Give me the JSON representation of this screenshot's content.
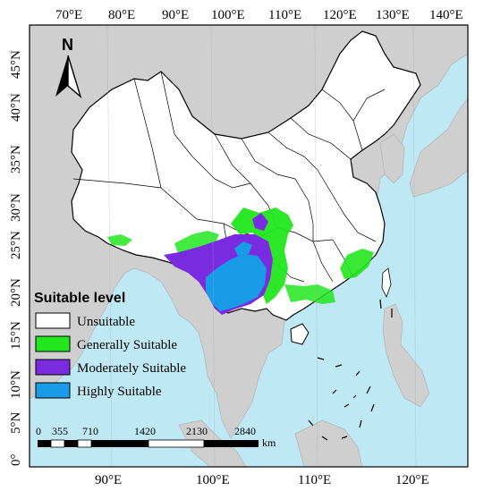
{
  "map": {
    "top_lon_labels": [
      "70°E",
      "80°E",
      "90°E",
      "100°E",
      "110°E",
      "120°E",
      "130°E",
      "140°E"
    ],
    "bottom_lon_labels": [
      "90°E",
      "100°E",
      "110°E",
      "120°E"
    ],
    "lat_labels": [
      "45°N",
      "40°N",
      "35°N",
      "30°N",
      "25°N",
      "20°N",
      "15°N",
      "10°N",
      "5°N",
      "0°"
    ],
    "north_label": "N"
  },
  "legend": {
    "title": "Suitable level",
    "items": [
      {
        "label": "Unsuitable",
        "color": "#ffffff"
      },
      {
        "label": "Generally Suitable",
        "color": "#22e61e"
      },
      {
        "label": "Moderately Suitable",
        "color": "#7a2be0"
      },
      {
        "label": "Highly Suitable",
        "color": "#1a9be8"
      }
    ]
  },
  "scale_bar": {
    "labels": [
      "0",
      "355",
      "710",
      "1420",
      "2130",
      "2840"
    ],
    "unit": "km"
  },
  "colors": {
    "sea": "#bfe8f5",
    "land_other": "#cfcfcf",
    "china": "#ffffff"
  }
}
